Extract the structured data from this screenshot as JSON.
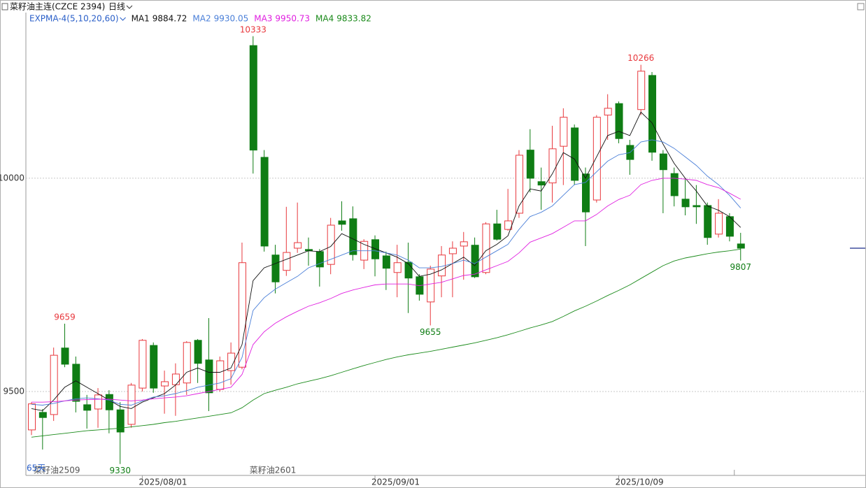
{
  "chart_data": {
    "type": "candlestick",
    "title": "菜籽油主连(CZCE 2394)",
    "period": "日线",
    "indicator": "EXPMA-4(5,10,20,60)",
    "period_label": "65天",
    "contract_labels": [
      {
        "index": 0,
        "text": "菜籽油2509"
      },
      {
        "index": 20,
        "text": "菜籽油2601"
      }
    ],
    "categories": [
      null,
      null,
      null,
      null,
      null,
      null,
      null,
      null,
      null,
      null,
      "2025/08/01",
      null,
      null,
      null,
      null,
      null,
      null,
      null,
      null,
      null,
      null,
      null,
      null,
      null,
      null,
      null,
      null,
      null,
      null,
      null,
      null,
      "2025/09/01",
      null,
      null,
      null,
      null,
      null,
      null,
      null,
      null,
      null,
      null,
      null,
      null,
      null,
      null,
      null,
      null,
      null,
      null,
      null,
      null,
      null,
      "2025/10/09",
      null,
      null,
      null,
      null,
      null,
      null,
      null,
      null,
      null,
      null,
      null
    ],
    "open": [
      9410,
      9451,
      9446,
      9602,
      9564,
      9469,
      9459,
      9493,
      9457,
      9423,
      9508,
      9608,
      9513,
      9516,
      9520,
      9620,
      9574,
      9505,
      9549,
      9557,
      10311,
      10049,
      9820,
      9784,
      9836,
      9833,
      9828,
      9798,
      9900,
      9905,
      9808,
      9856,
      9818,
      9779,
      9803,
      9769,
      9710,
      9771,
      9823,
      9841,
      9843,
      9779,
      9893,
      9880,
      9918,
      10066,
      9992,
      9989,
      10075,
      10118,
      10010,
      9949,
      10148,
      10175,
      10077,
      10161,
      10241,
      10057,
      10011,
      9951,
      9936,
      9936,
      9869,
      9910,
      9846
    ],
    "high": [
      9475,
      9459,
      9603,
      9659,
      9582,
      9492,
      9508,
      9503,
      9475,
      9520,
      9623,
      9615,
      9549,
      9566,
      9618,
      9623,
      9672,
      9582,
      9615,
      9849,
      10333,
      10066,
      9844,
      9933,
      9943,
      9861,
      9834,
      9907,
      9946,
      9934,
      9857,
      9866,
      9828,
      9844,
      9849,
      9775,
      9795,
      9841,
      9852,
      9874,
      9861,
      9897,
      9926,
      9975,
      10066,
      10115,
      10025,
      10123,
      10164,
      10126,
      10025,
      10148,
      10197,
      10180,
      10090,
      10266,
      10249,
      10066,
      10025,
      10000,
      9984,
      9943,
      9951,
      9918,
      9872
    ],
    "low": [
      9398,
      9364,
      9431,
      9557,
      9451,
      9413,
      9415,
      9402,
      9330,
      9415,
      9500,
      9497,
      9448,
      9443,
      9492,
      9520,
      9454,
      9500,
      9516,
      9552,
      10011,
      9828,
      9730,
      9771,
      9825,
      9795,
      9746,
      9775,
      9877,
      9807,
      9787,
      9770,
      9738,
      9721,
      9684,
      9713,
      9655,
      9721,
      9721,
      9762,
      9766,
      9775,
      9854,
      9877,
      9907,
      9967,
      9926,
      9943,
      9984,
      9984,
      9841,
      9943,
      10090,
      10082,
      10008,
      10148,
      10041,
      9918,
      9934,
      9913,
      9893,
      9844,
      9861,
      9852,
      9807
    ],
    "close": [
      9471,
      9439,
      9585,
      9564,
      9477,
      9456,
      9492,
      9457,
      9405,
      9515,
      9620,
      9508,
      9523,
      9541,
      9615,
      9566,
      9497,
      9572,
      9590,
      9802,
      10066,
      9841,
      9757,
      9826,
      9849,
      9830,
      9792,
      9890,
      9892,
      9821,
      9852,
      9811,
      9789,
      9802,
      9766,
      9728,
      9787,
      9820,
      9836,
      9851,
      9769,
      9893,
      9857,
      9900,
      10054,
      10000,
      9984,
      10069,
      10143,
      9995,
      9921,
      10143,
      10164,
      10093,
      10044,
      10251,
      10061,
      10020,
      9959,
      9933,
      9933,
      9861,
      9918,
      9864,
      9836
    ],
    "up_color": "#e8383d",
    "down_color": "#0f7d14",
    "marked_points": [
      {
        "index": 3,
        "kind": "high"
      },
      {
        "index": 8,
        "kind": "low"
      },
      {
        "index": 20,
        "kind": "high"
      },
      {
        "index": 36,
        "kind": "low"
      },
      {
        "index": 55,
        "kind": "high"
      },
      {
        "index": 64,
        "kind": "low"
      }
    ],
    "series": [
      {
        "name": "MA1",
        "color": "#111111",
        "values": [
          9460,
          9455,
          9480,
          9510,
          9525,
          9510,
          9495,
          9480,
          9465,
          9460,
          9475,
          9485,
          9495,
          9515,
          9545,
          9555,
          9545,
          9545,
          9555,
          9610,
          9760,
          9790,
          9800,
          9810,
          9820,
          9830,
          9828,
          9840,
          9870,
          9858,
          9845,
          9835,
          9825,
          9815,
          9800,
          9770,
          9775,
          9785,
          9800,
          9815,
          9795,
          9830,
          9845,
          9865,
          9935,
          9975,
          9970,
          10010,
          10060,
          10045,
          10000,
          10050,
          10100,
          10110,
          10100,
          10155,
          10130,
          10080,
          10035,
          10000,
          9970,
          9935,
          9925,
          9910,
          9884.72
        ]
      },
      {
        "name": "MA2",
        "color": "#4a7fd8",
        "values": [
          9470,
          9468,
          9472,
          9478,
          9483,
          9485,
          9483,
          9480,
          9470,
          9468,
          9478,
          9487,
          9490,
          9495,
          9502,
          9510,
          9515,
          9520,
          9530,
          9580,
          9690,
          9720,
          9740,
          9755,
          9770,
          9790,
          9800,
          9810,
          9820,
          9830,
          9830,
          9830,
          9825,
          9820,
          9808,
          9790,
          9790,
          9793,
          9800,
          9808,
          9800,
          9815,
          9830,
          9845,
          9880,
          9910,
          9920,
          9935,
          9960,
          9985,
          9990,
          10015,
          10040,
          10055,
          10060,
          10085,
          10090,
          10085,
          10070,
          10050,
          10030,
          10005,
          9985,
          9960,
          9930.05
        ]
      },
      {
        "name": "MA3",
        "color": "#e020e0",
        "values": [
          9475,
          9475,
          9476,
          9478,
          9480,
          9481,
          9482,
          9482,
          9480,
          9478,
          9480,
          9483,
          9485,
          9487,
          9490,
          9495,
          9500,
          9505,
          9510,
          9540,
          9610,
          9640,
          9660,
          9675,
          9688,
          9700,
          9708,
          9718,
          9730,
          9738,
          9744,
          9750,
          9752,
          9752,
          9752,
          9748,
          9752,
          9756,
          9764,
          9772,
          9775,
          9785,
          9795,
          9805,
          9825,
          9850,
          9860,
          9870,
          9885,
          9900,
          9900,
          9915,
          9935,
          9950,
          9960,
          9985,
          9995,
          10000,
          10000,
          9998,
          9995,
          9985,
          9978,
          9965,
          9950.73
        ]
      },
      {
        "name": "MA4",
        "color": "#1a8a1a",
        "values": [
          9393,
          9396,
          9399,
          9402,
          9405,
          9408,
          9410,
          9412,
          9414,
          9417,
          9420,
          9423,
          9427,
          9430,
          9434,
          9438,
          9442,
          9446,
          9450,
          9462,
          9480,
          9495,
          9503,
          9510,
          9518,
          9524,
          9530,
          9537,
          9545,
          9553,
          9561,
          9568,
          9575,
          9581,
          9586,
          9590,
          9594,
          9599,
          9604,
          9609,
          9614,
          9620,
          9626,
          9633,
          9641,
          9649,
          9656,
          9664,
          9676,
          9689,
          9700,
          9712,
          9725,
          9737,
          9750,
          9765,
          9780,
          9795,
          9806,
          9813,
          9818,
          9823,
          9827,
          9830,
          9833.82
        ]
      }
    ],
    "ylim": [
      9300,
      10390
    ],
    "yticks": [
      9500,
      10000
    ],
    "grid": true
  }
}
